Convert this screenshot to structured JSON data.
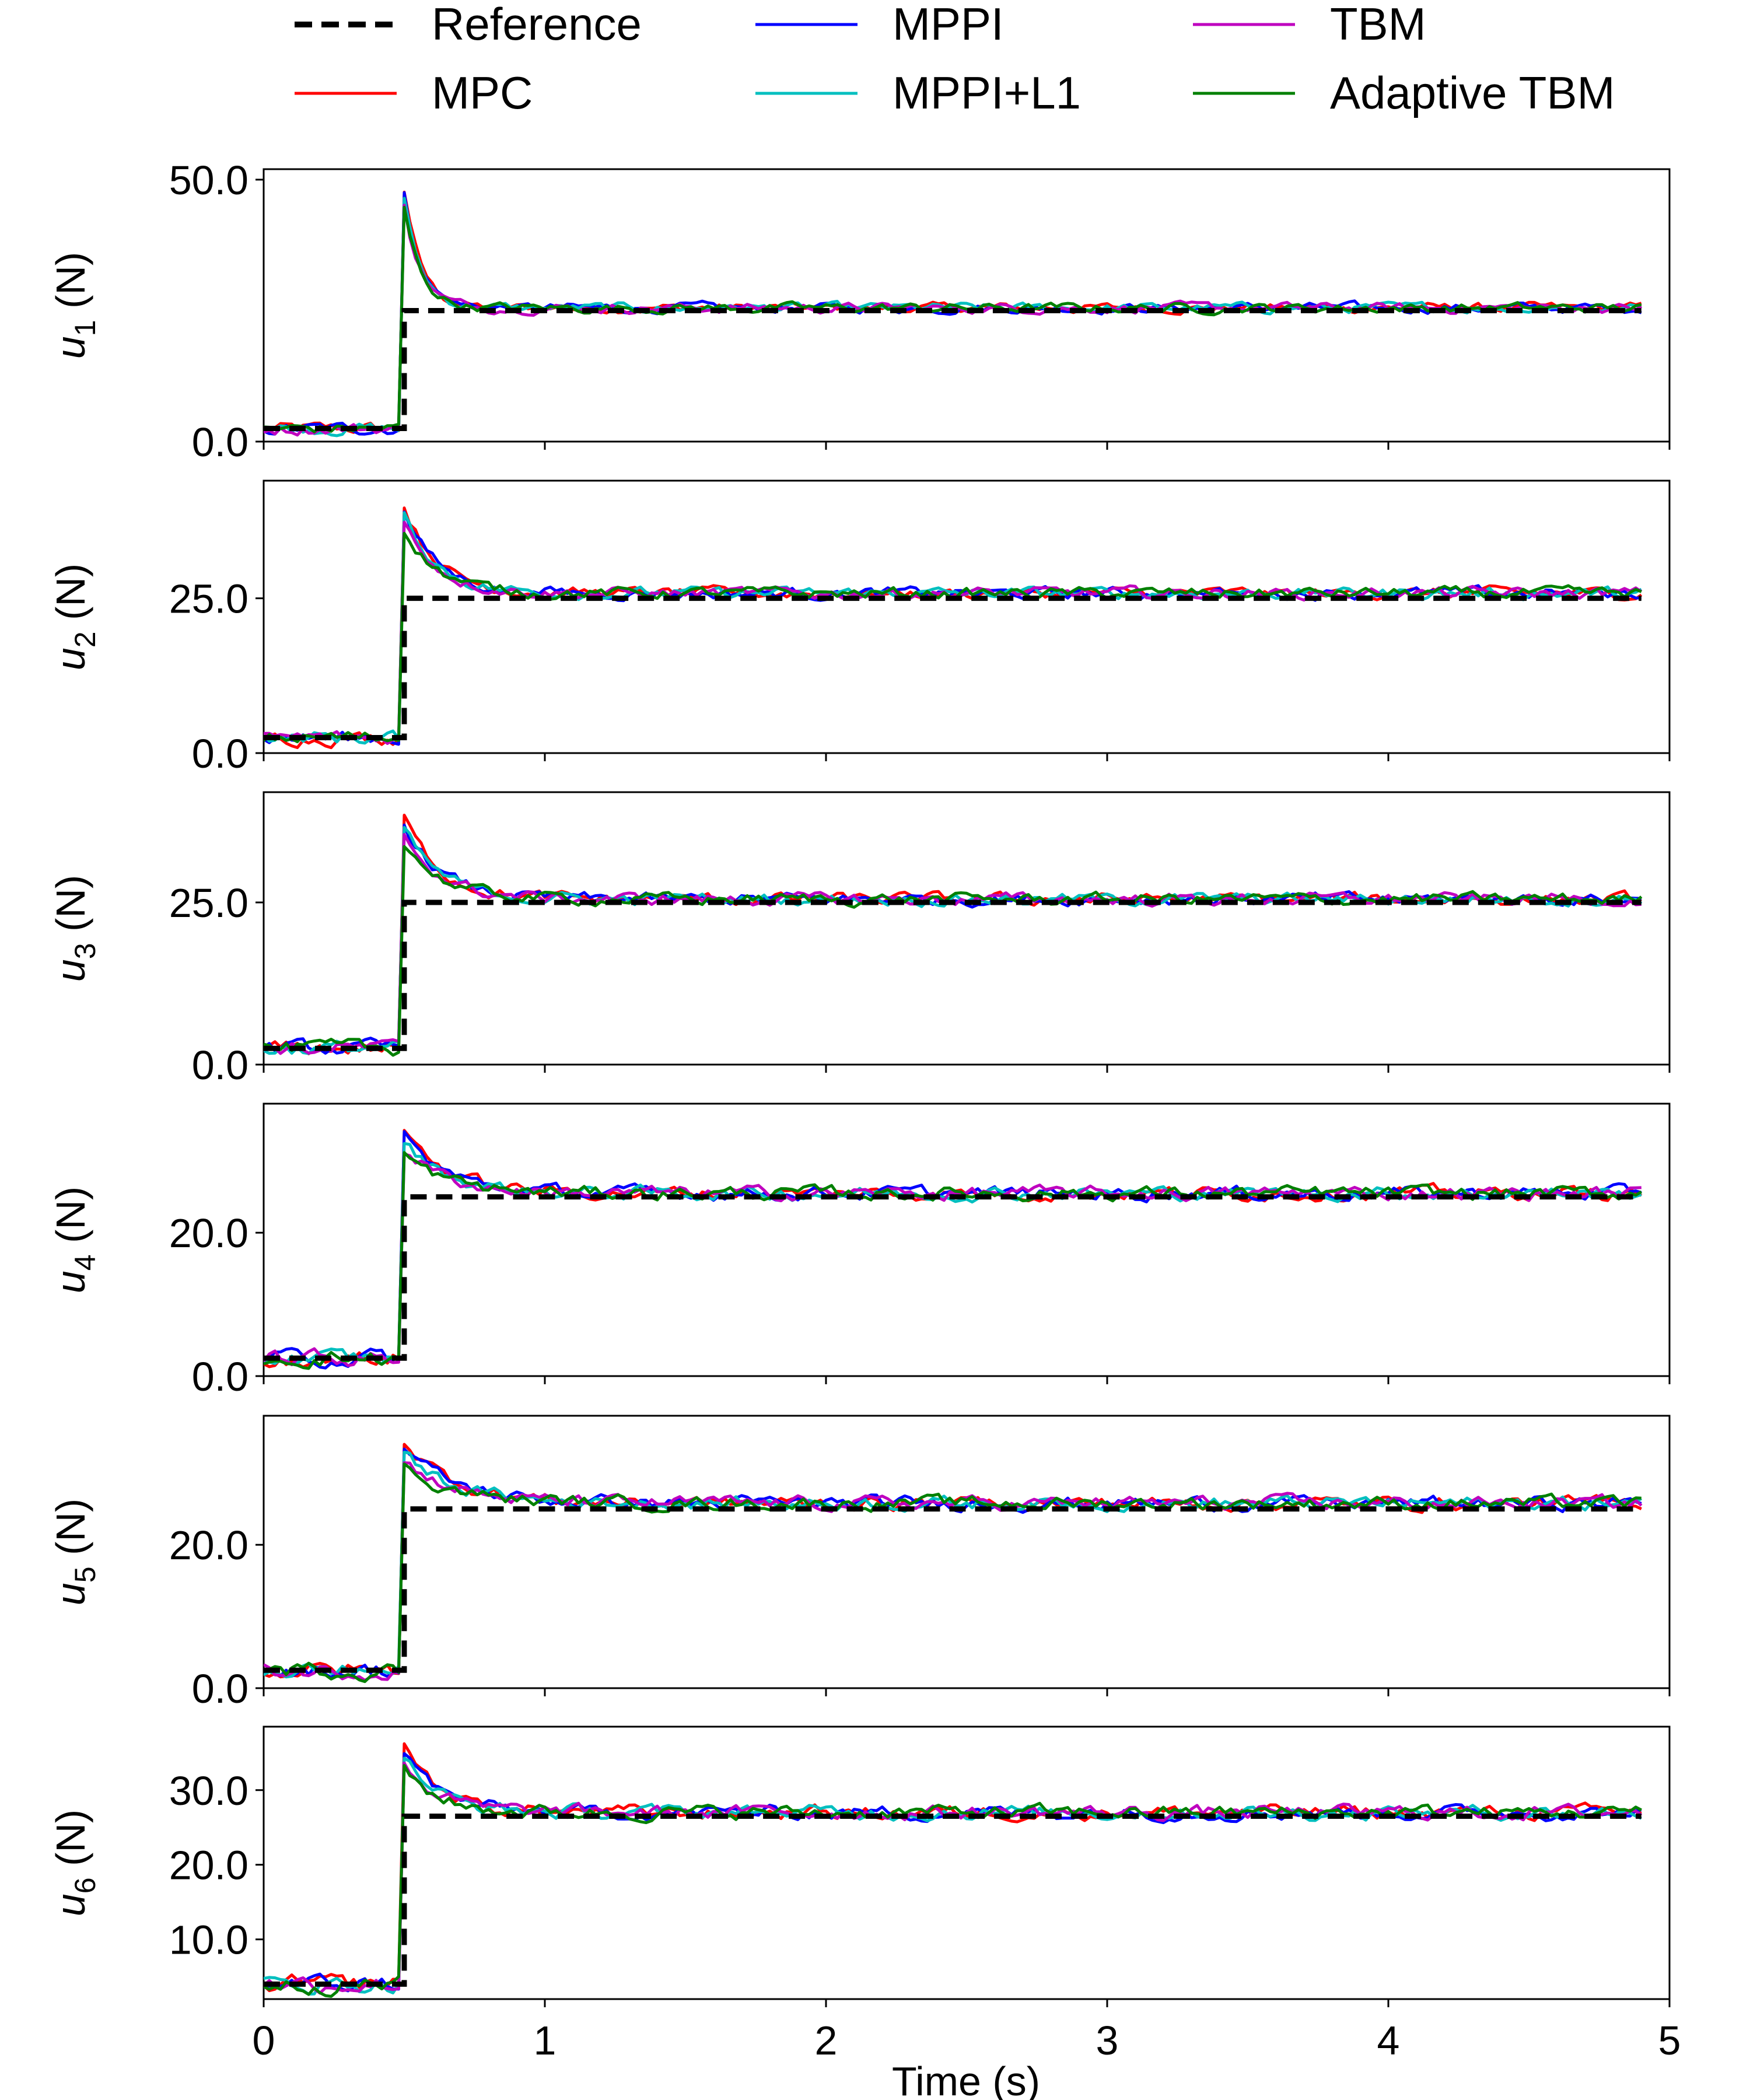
{
  "chart_data": {
    "type": "line",
    "xlabel": "Time (s)",
    "xlim": [
      0,
      5
    ],
    "xticks": [
      "0",
      "1",
      "2",
      "3",
      "4",
      "5"
    ],
    "xtick_values": [
      0,
      1,
      2,
      3,
      4,
      5
    ],
    "legend": {
      "placement": "top",
      "columns": 3,
      "entries": [
        {
          "name": "Reference",
          "color": "#000000",
          "dashed": true
        },
        {
          "name": "MPC",
          "color": "#ff0000",
          "dashed": false
        },
        {
          "name": "MPPI",
          "color": "#0000ff",
          "dashed": false
        },
        {
          "name": "MPPI+L1",
          "color": "#00bfbf",
          "dashed": false
        },
        {
          "name": "TBM",
          "color": "#bf00bf",
          "dashed": false
        },
        {
          "name": "Adaptive TBM",
          "color": "#008000",
          "dashed": false
        }
      ]
    },
    "step_time": 0.5,
    "end_time": 4.9,
    "subplots": [
      {
        "ylabel_var": "u",
        "ylabel_sub": "1",
        "ylabel_unit": " (N)",
        "ylim": [
          0,
          52
        ],
        "yticks": [
          0,
          50
        ],
        "ytick_labels": [
          "0.0",
          "50.0"
        ],
        "reference": {
          "before": 2.5,
          "after": 25.0
        },
        "peak": 48,
        "pre": 2.5,
        "post": 25.5,
        "tau": 0.06
      },
      {
        "ylabel_var": "u",
        "ylabel_sub": "2",
        "ylabel_unit": " (N)",
        "ylim": [
          0,
          44
        ],
        "yticks": [
          0,
          25
        ],
        "ytick_labels": [
          "0.0",
          "25.0"
        ],
        "reference": {
          "before": 2.5,
          "after": 25.0
        },
        "peak": 40,
        "pre": 2.5,
        "post": 25.8,
        "tau": 0.12
      },
      {
        "ylabel_var": "u",
        "ylabel_sub": "3",
        "ylabel_unit": " (N)",
        "ylim": [
          0,
          42
        ],
        "yticks": [
          0,
          25
        ],
        "ytick_labels": [
          "0.0",
          "25.0"
        ],
        "reference": {
          "before": 2.5,
          "after": 25.0
        },
        "peak": 38,
        "pre": 2.5,
        "post": 25.5,
        "tau": 0.13
      },
      {
        "ylabel_var": "u",
        "ylabel_sub": "4",
        "ylabel_unit": " (N)",
        "ylim": [
          0,
          38
        ],
        "yticks": [
          0,
          20
        ],
        "ytick_labels": [
          "0.0",
          "20.0"
        ],
        "reference": {
          "before": 2.5,
          "after": 25.0
        },
        "peak": 34.5,
        "pre": 2.5,
        "post": 25.5,
        "tau": 0.15
      },
      {
        "ylabel_var": "u",
        "ylabel_sub": "5",
        "ylabel_unit": " (N)",
        "ylim": [
          0,
          38
        ],
        "yticks": [
          0,
          20
        ],
        "ytick_labels": [
          "0.0",
          "20.0"
        ],
        "reference": {
          "before": 2.5,
          "after": 25.0
        },
        "peak": 34.5,
        "pre": 2.5,
        "post": 25.8,
        "tau": 0.18
      },
      {
        "ylabel_var": "u",
        "ylabel_sub": "6",
        "ylabel_unit": " (N)",
        "ylim": [
          2,
          38.5
        ],
        "yticks": [
          10,
          20,
          30
        ],
        "ytick_labels": [
          "10.0",
          "20.0",
          "30.0"
        ],
        "reference": {
          "before": 4.0,
          "after": 26.5
        },
        "peak": 36.5,
        "pre": 4.0,
        "post": 27.0,
        "tau": 0.12
      }
    ]
  }
}
